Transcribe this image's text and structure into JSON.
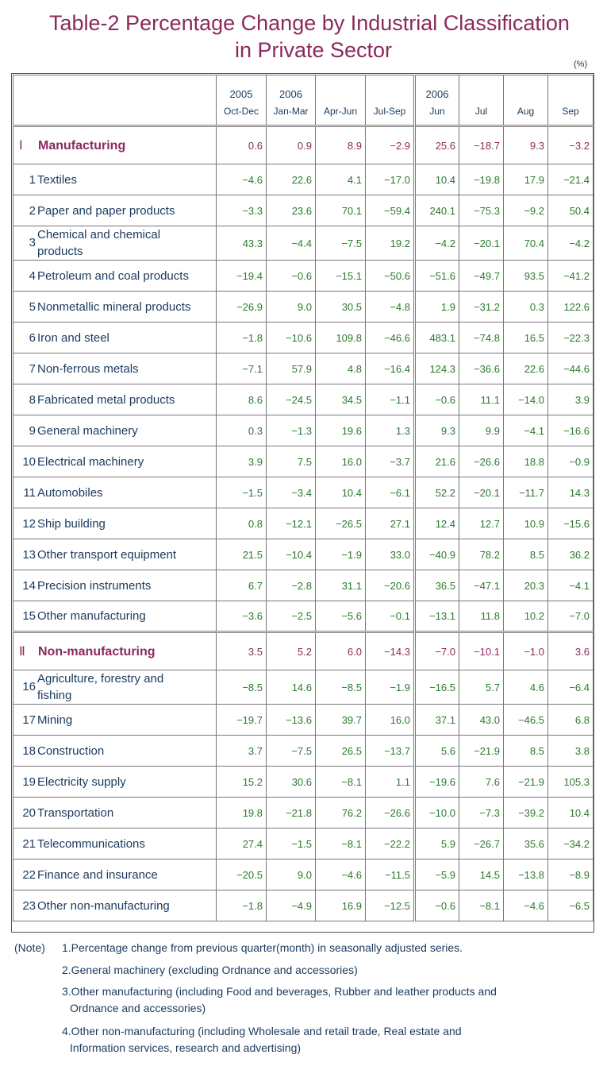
{
  "title_line1": "Table-2   Percentage Change by Industrial Classification",
  "title_line2": "in Private Sector",
  "unit": "(%)",
  "headers": [
    {
      "year": "2005",
      "period": "Oct-Dec"
    },
    {
      "year": "2006",
      "period": "Jan-Mar"
    },
    {
      "year": "",
      "period": "Apr-Jun"
    },
    {
      "year": "",
      "period": "Jul-Sep"
    },
    {
      "year": "2006",
      "period": "Jun"
    },
    {
      "year": "",
      "period": "Jul"
    },
    {
      "year": "",
      "period": "Aug"
    },
    {
      "year": "",
      "period": "Sep"
    }
  ],
  "rows": [
    {
      "no": "Ⅰ",
      "label": "Manufacturing",
      "section": true,
      "values": [
        "0.6",
        "0.9",
        "8.9",
        "−2.9",
        "25.6",
        "−18.7",
        "9.3",
        "−3.2"
      ]
    },
    {
      "no": "1",
      "label": "Textiles",
      "values": [
        "−4.6",
        "22.6",
        "4.1",
        "−17.0",
        "10.4",
        "−19.8",
        "17.9",
        "−21.4"
      ]
    },
    {
      "no": "2",
      "label": "Paper and paper products",
      "values": [
        "−3.3",
        "23.6",
        "70.1",
        "−59.4",
        "240.1",
        "−75.3",
        "−9.2",
        "50.4"
      ]
    },
    {
      "no": "3",
      "label": "Chemical and chemical products",
      "label_a": "Chemical and chemical",
      "label_b": "products",
      "values": [
        "43.3",
        "−4.4",
        "−7.5",
        "19.2",
        "−4.2",
        "−20.1",
        "70.4",
        "−4.2"
      ]
    },
    {
      "no": "4",
      "label": "Petroleum and coal products",
      "values": [
        "−19.4",
        "−0.6",
        "−15.1",
        "−50.6",
        "−51.6",
        "−49.7",
        "93.5",
        "−41.2"
      ]
    },
    {
      "no": "5",
      "label": "Nonmetallic mineral products",
      "values": [
        "−26.9",
        "9.0",
        "30.5",
        "−4.8",
        "1.9",
        "−31.2",
        "0.3",
        "122.6"
      ]
    },
    {
      "no": "6",
      "label": "Iron and steel",
      "values": [
        "−1.8",
        "−10.6",
        "109.8",
        "−46.6",
        "483.1",
        "−74.8",
        "16.5",
        "−22.3"
      ]
    },
    {
      "no": "7",
      "label": "Non-ferrous metals",
      "values": [
        "−7.1",
        "57.9",
        "4.8",
        "−16.4",
        "124.3",
        "−36.6",
        "22.6",
        "−44.6"
      ]
    },
    {
      "no": "8",
      "label": "Fabricated metal products",
      "values": [
        "8.6",
        "−24.5",
        "34.5",
        "−1.1",
        "−0.6",
        "11.1",
        "−14.0",
        "3.9"
      ]
    },
    {
      "no": "9",
      "label": "General machinery",
      "values": [
        "0.3",
        "−1.3",
        "19.6",
        "1.3",
        "9.3",
        "9.9",
        "−4.1",
        "−16.6"
      ]
    },
    {
      "no": "10",
      "label": "Electrical machinery",
      "values": [
        "3.9",
        "7.5",
        "16.0",
        "−3.7",
        "21.6",
        "−26.6",
        "18.8",
        "−0.9"
      ]
    },
    {
      "no": "11",
      "label": "Automobiles",
      "values": [
        "−1.5",
        "−3.4",
        "10.4",
        "−6.1",
        "52.2",
        "−20.1",
        "−11.7",
        "14.3"
      ]
    },
    {
      "no": "12",
      "label": "Ship building",
      "values": [
        "0.8",
        "−12.1",
        "−26.5",
        "27.1",
        "12.4",
        "12.7",
        "10.9",
        "−15.6"
      ]
    },
    {
      "no": "13",
      "label": "Other transport equipment",
      "values": [
        "21.5",
        "−10.4",
        "−1.9",
        "33.0",
        "−40.9",
        "78.2",
        "8.5",
        "36.2"
      ]
    },
    {
      "no": "14",
      "label": "Precision instruments",
      "values": [
        "6.7",
        "−2.8",
        "31.1",
        "−20.6",
        "36.5",
        "−47.1",
        "20.3",
        "−4.1"
      ]
    },
    {
      "no": "15",
      "label": "Other manufacturing",
      "values": [
        "−3.6",
        "−2.5",
        "−5.6",
        "−0.1",
        "−13.1",
        "11.8",
        "10.2",
        "−7.0"
      ]
    },
    {
      "no": "Ⅱ",
      "label": "Non-manufacturing",
      "section": true,
      "values": [
        "3.5",
        "5.2",
        "6.0",
        "−14.3",
        "−7.0",
        "−10.1",
        "−1.0",
        "3.6"
      ]
    },
    {
      "no": "16",
      "label": "Agriculture, forestry and fishing",
      "label_a": "Agriculture, forestry and",
      "label_b": "fishing",
      "values": [
        "−8.5",
        "14.6",
        "−8.5",
        "−1.9",
        "−16.5",
        "5.7",
        "4.6",
        "−6.4"
      ]
    },
    {
      "no": "17",
      "label": "Mining",
      "values": [
        "−19.7",
        "−13.6",
        "39.7",
        "16.0",
        "37.1",
        "43.0",
        "−46.5",
        "6.8"
      ]
    },
    {
      "no": "18",
      "label": "Construction",
      "values": [
        "3.7",
        "−7.5",
        "26.5",
        "−13.7",
        "5.6",
        "−21.9",
        "8.5",
        "3.8"
      ]
    },
    {
      "no": "19",
      "label": "Electricity supply",
      "values": [
        "15.2",
        "30.6",
        "−8.1",
        "1.1",
        "−19.6",
        "7.6",
        "−21.9",
        "105.3"
      ]
    },
    {
      "no": "20",
      "label": "Transportation",
      "values": [
        "19.8",
        "−21.8",
        "76.2",
        "−26.6",
        "−10.0",
        "−7.3",
        "−39.2",
        "10.4"
      ]
    },
    {
      "no": "21",
      "label": "Telecommunications",
      "values": [
        "27.4",
        "−1.5",
        "−8.1",
        "−22.2",
        "5.9",
        "−26.7",
        "35.6",
        "−34.2"
      ]
    },
    {
      "no": "22",
      "label": "Finance and insurance",
      "values": [
        "−20.5",
        "9.0",
        "−4.6",
        "−11.5",
        "−5.9",
        "14.5",
        "−13.8",
        "−8.9"
      ]
    },
    {
      "no": "23",
      "label": "Other non-manufacturing",
      "values": [
        "−1.8",
        "−4.9",
        "16.9",
        "−12.5",
        "−0.6",
        "−8.1",
        "−4.6",
        "−6.5"
      ]
    }
  ],
  "notes": {
    "prefix": "(Note)",
    "n1": "1.Percentage change from previous quarter(month) in seasonally adjusted series.",
    "n2": "2.General machinery (excluding Ordnance and accessories)",
    "n3a": "3.Other manufacturing (including Food and beverages, Rubber and leather products and",
    "n3b": "Ordnance and accessories)",
    "n4a": "4.Other non-manufacturing (including Wholesale and retail trade, Real estate and",
    "n4b": "Information services, research and advertising)"
  }
}
